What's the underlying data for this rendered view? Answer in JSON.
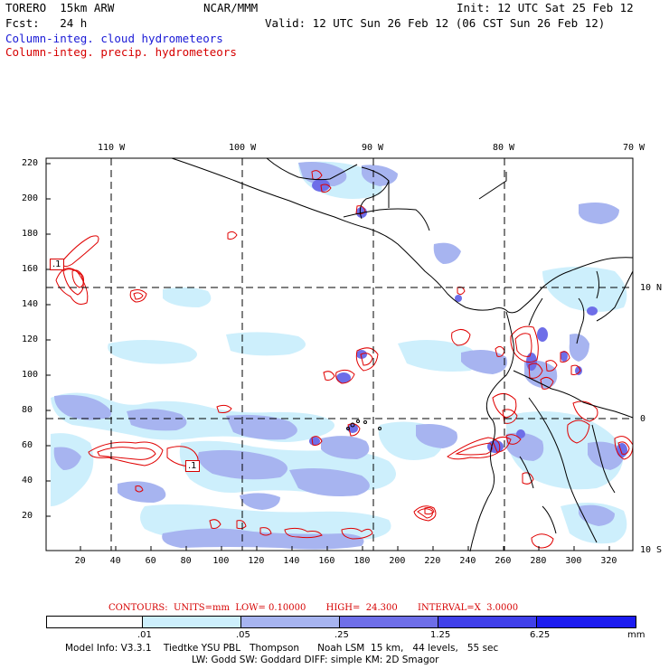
{
  "header": {
    "model_name": "TORERO  15km ARW",
    "org": "NCAR/MMM",
    "init": "Init: 12 UTC Sat 25 Feb 12",
    "forecast": "Fcst:   24 h",
    "valid": "Valid: 12 UTC Sun 26 Feb 12 (06 CST Sun 26 Feb 12)",
    "field1": "Column-integ. cloud hydrometeors",
    "field2": "Column-integ. precip. hydrometeors"
  },
  "colors": {
    "cloud_fill_1": "#cdeffc",
    "cloud_fill_2": "#a7b4f0",
    "cloud_fill_3": "#6e6ee8",
    "cloud_fill_4": "#4040ea",
    "cloud_fill_5": "#1c1cf0",
    "precip_contour": "#e00000",
    "coast": "#000000",
    "grid": "#000000",
    "field1_text": "#1a1ad6",
    "field2_text": "#d60000"
  },
  "map": {
    "top_lon_labels": [
      "110 W",
      "100 W",
      "90 W",
      "80 W",
      "70 W"
    ],
    "right_lat_labels": [
      "10 N",
      "0",
      "10 S"
    ],
    "y_ticks": [
      "220",
      "200",
      "180",
      "160",
      "140",
      "120",
      "100",
      "80",
      "60",
      "40",
      "20"
    ],
    "x_ticks": [
      "20",
      "40",
      "60",
      "80",
      "100",
      "120",
      "140",
      "160",
      "180",
      "200",
      "220",
      "240",
      "260",
      "280",
      "300",
      "320"
    ],
    "contour_labels": [
      ".1",
      ".1"
    ]
  },
  "contours_info": {
    "text": "CONTOURS:  UNITS=mm  LOW= 0.10000       HIGH=  24.300       INTERVAL=X  3.0000"
  },
  "colorbar": {
    "labels": [
      ".01",
      ".05",
      ".25",
      "1.25",
      "6.25"
    ],
    "unit": "mm",
    "colors": [
      "#ffffff",
      "#cdeffc",
      "#a7b4f0",
      "#6e6ee8",
      "#4040ea",
      "#1c1cf0"
    ]
  },
  "model_info": {
    "line1": "Model Info: V3.3.1    Tiedtke YSU PBL   Thompson      Noah LSM  15 km,   44 levels,   55 sec",
    "line2": "LW: Godd SW: Goddard DIFF: simple KM: 2D Smagor"
  }
}
